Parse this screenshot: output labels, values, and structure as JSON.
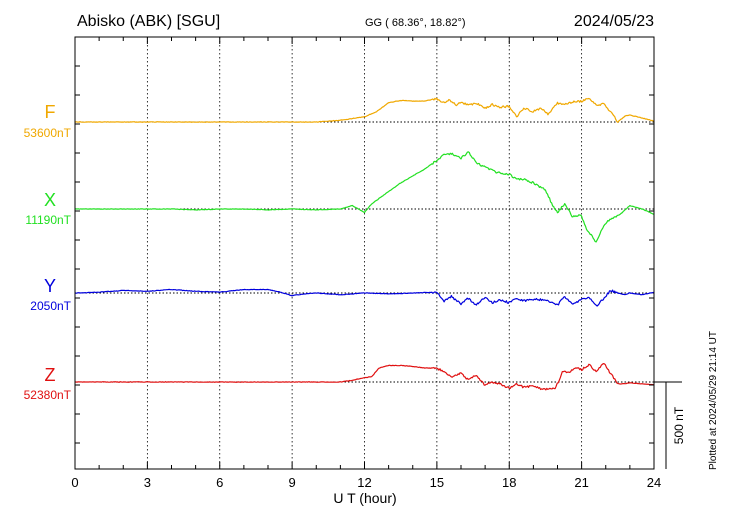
{
  "header": {
    "station": "Abisko (ABK)  [SGU]",
    "coords": "GG ( 68.36°,  18.82°)",
    "date": "2024/05/23"
  },
  "footer": {
    "plotted": "Plotted at 2024/05/29 21:14 UT"
  },
  "chart_data": {
    "type": "line",
    "xlabel": "U T (hour)",
    "xlim": [
      0,
      24
    ],
    "xticks": [
      "0",
      "3",
      "6",
      "9",
      "12",
      "15",
      "18",
      "21",
      "24"
    ],
    "scale_bar": "500 nT",
    "scale_nT": 500,
    "series": [
      {
        "name": "F",
        "base_label": "53600nT",
        "color": "#f0a800",
        "x": [
          0,
          1,
          2,
          3,
          4,
          5,
          6,
          7,
          8,
          9,
          10,
          11,
          11.5,
          12,
          12.5,
          13,
          13.3,
          13.6,
          14,
          14.5,
          15,
          15.2,
          15.5,
          15.8,
          16,
          16.3,
          16.6,
          17,
          17.3,
          17.6,
          18,
          18.3,
          18.6,
          19,
          19.3,
          19.6,
          20,
          20.3,
          20.6,
          21,
          21.3,
          21.6,
          21.9,
          22.2,
          22.5,
          22.8,
          23,
          23.3,
          23.6,
          24
        ],
        "y": [
          0,
          0,
          0,
          0,
          0,
          0,
          0,
          0,
          0,
          0,
          0,
          10,
          20,
          30,
          60,
          110,
          120,
          125,
          120,
          120,
          135,
          110,
          125,
          100,
          115,
          95,
          110,
          80,
          100,
          85,
          90,
          30,
          80,
          60,
          80,
          45,
          110,
          100,
          115,
          120,
          140,
          95,
          105,
          60,
          0,
          35,
          40,
          30,
          20,
          5
        ]
      },
      {
        "name": "X",
        "base_label": "11190nT",
        "color": "#22e022",
        "x": [
          0,
          1,
          2,
          3,
          4,
          5,
          6,
          7,
          8,
          9,
          10,
          11,
          11.5,
          12,
          12.3,
          12.6,
          13,
          13.5,
          14,
          14.5,
          15,
          15.3,
          15.6,
          16,
          16.3,
          16.6,
          17,
          17.5,
          18,
          18.3,
          18.6,
          19,
          19.5,
          19.8,
          20,
          20.3,
          20.6,
          21,
          21.2,
          21.4,
          21.6,
          21.8,
          22,
          22.3,
          22.6,
          23,
          23.5,
          24
        ],
        "y": [
          0,
          0,
          0,
          0,
          0,
          -5,
          0,
          0,
          -5,
          0,
          -5,
          0,
          20,
          -20,
          30,
          60,
          100,
          150,
          190,
          230,
          280,
          310,
          320,
          290,
          330,
          270,
          240,
          210,
          200,
          170,
          170,
          150,
          110,
          20,
          -20,
          30,
          -40,
          -40,
          -120,
          -150,
          -190,
          -130,
          -80,
          -50,
          -30,
          20,
          0,
          -30
        ]
      },
      {
        "name": "Y",
        "base_label": "2050nT",
        "color": "#0000dd",
        "x": [
          0,
          1,
          2,
          3,
          4,
          5,
          6,
          7,
          8,
          8.5,
          9,
          9.5,
          10,
          11,
          12,
          13,
          14,
          15,
          15.3,
          15.6,
          16,
          16.3,
          16.6,
          17,
          17.3,
          17.6,
          18,
          18.3,
          18.6,
          19,
          19.5,
          20,
          20.3,
          20.6,
          21,
          21.3,
          21.6,
          21.9,
          22.2,
          22.5,
          22.8,
          23,
          23.5,
          24
        ],
        "y": [
          0,
          5,
          15,
          10,
          20,
          10,
          5,
          20,
          20,
          5,
          -15,
          -5,
          0,
          -10,
          0,
          -5,
          0,
          5,
          -45,
          -20,
          -65,
          -30,
          -70,
          -25,
          -55,
          -40,
          -55,
          -30,
          -45,
          -35,
          -40,
          -70,
          -20,
          -60,
          -40,
          -20,
          -75,
          -35,
          15,
          0,
          -10,
          0,
          -10,
          5
        ]
      },
      {
        "name": "Z",
        "base_label": "52380nT",
        "color": "#e01010",
        "x": [
          0,
          1,
          2,
          3,
          4,
          5,
          6,
          7,
          8,
          9,
          10,
          11,
          11.5,
          12,
          12.3,
          12.6,
          13,
          13.5,
          14,
          14.5,
          15,
          15.3,
          15.6,
          16,
          16.3,
          16.6,
          17,
          17.3,
          17.6,
          18,
          18.3,
          18.6,
          19,
          19.3,
          19.6,
          19.9,
          20.2,
          20.5,
          20.8,
          21,
          21.3,
          21.6,
          21.9,
          22.2,
          22.5,
          22.8,
          23,
          23.5,
          24
        ],
        "y": [
          0,
          0,
          0,
          0,
          0,
          0,
          0,
          0,
          0,
          0,
          0,
          0,
          10,
          25,
          30,
          80,
          95,
          95,
          90,
          80,
          80,
          60,
          30,
          50,
          10,
          40,
          -20,
          0,
          -10,
          -35,
          -10,
          -30,
          -20,
          -40,
          -40,
          -40,
          55,
          60,
          80,
          70,
          100,
          60,
          110,
          50,
          -10,
          -10,
          -5,
          -10,
          -15
        ]
      }
    ]
  }
}
